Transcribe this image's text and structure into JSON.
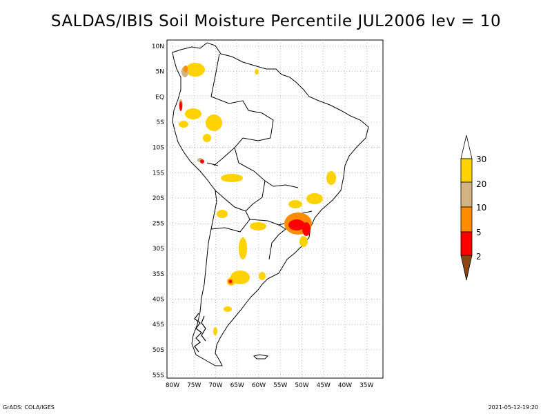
{
  "title": "SALDAS/IBIS Soil Moisture Percentile JUL2006 lev = 10",
  "map": {
    "lat_ticks": [
      "10N",
      "5N",
      "EQ",
      "5S",
      "10S",
      "15S",
      "20S",
      "25S",
      "30S",
      "35S",
      "40S",
      "45S",
      "50S",
      "55S"
    ],
    "lon_ticks": [
      "80W",
      "75W",
      "70W",
      "65W",
      "60W",
      "55W",
      "50W",
      "45W",
      "40W",
      "35W"
    ],
    "lat_range": [
      10,
      -56
    ],
    "lon_range": [
      -81,
      -34
    ],
    "grid": true
  },
  "colorbar": {
    "labels": [
      "30",
      "20",
      "10",
      "5",
      "2"
    ],
    "colors": {
      "above_30": "#ffffff",
      "20_30": "#ffd200",
      "10_20": "#d2b482",
      "5_10": "#ff8c00",
      "2_5": "#ff0000",
      "below_2": "#8b4513"
    }
  },
  "footer": {
    "left": "GrADS: COLA/IGES",
    "right": "2021-05-12-19:20"
  }
}
